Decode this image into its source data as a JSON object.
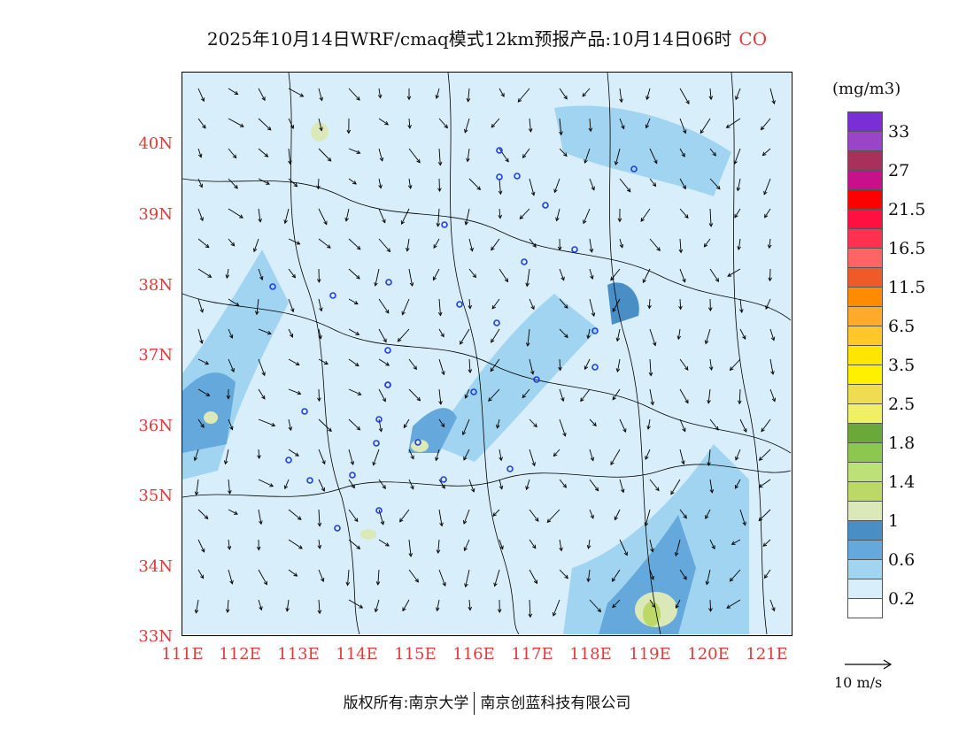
{
  "title": {
    "main": "2025年10月14日WRF/cmaq模式12km预报产品:10月14日06时",
    "species": "CO"
  },
  "map": {
    "lat_ticks": [
      "40N",
      "39N",
      "38N",
      "37N",
      "36N",
      "35N",
      "34N",
      "33N"
    ],
    "lon_ticks": [
      "111E",
      "112E",
      "113E",
      "114E",
      "115E",
      "116E",
      "117E",
      "118E",
      "119E",
      "120E",
      "121E"
    ],
    "base_color": "#d8eefb"
  },
  "legend": {
    "unit": "(mg/m3)",
    "colors": [
      "#7a2fd6",
      "#9a44c8",
      "#a8305a",
      "#c8108a",
      "#ff0000",
      "#ff1040",
      "#ff3050",
      "#ff6464",
      "#f05a28",
      "#ff8c00",
      "#ffaa28",
      "#ffc828",
      "#ffe600",
      "#fff000",
      "#f0dc50",
      "#f0f064",
      "#6aa83a",
      "#8cc850",
      "#bee078",
      "#bcd866",
      "#dbe8b8",
      "#4a8ec6",
      "#64a8dc",
      "#a0d4f0",
      "#d8eefb",
      "#ffffff"
    ],
    "labels": [
      "33",
      "27",
      "21.5",
      "16.5",
      "11.5",
      "6.5",
      "3.5",
      "2.5",
      "1.8",
      "1.4",
      "1",
      "0.6",
      "0.2"
    ],
    "wind_reference": "10 m/s"
  },
  "footer": {
    "left": "版权所有:南京大学",
    "right": "南京创蓝科技有限公司"
  }
}
